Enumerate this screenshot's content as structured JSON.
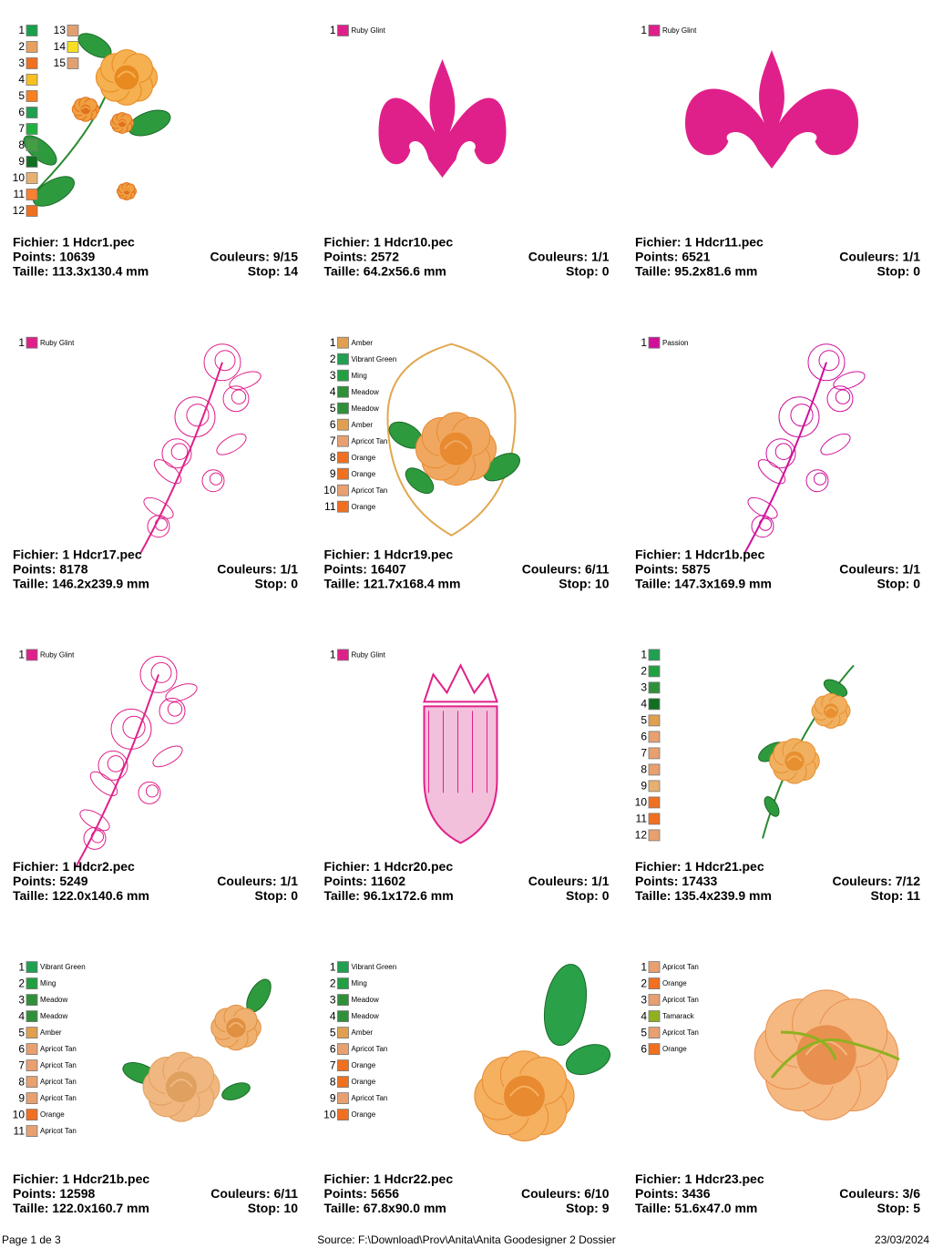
{
  "cards": [
    {
      "file": "Fichier: 1 Hdcr1.pec",
      "points": "Points: 10639",
      "colors_used": "Couleurs: 9/15",
      "size": "Taille: 113.3x130.4 mm",
      "stop": "Stop: 14",
      "items": [
        {
          "num": 1,
          "color": "#1aa04a"
        },
        {
          "num": 2,
          "color": "#e8a060"
        },
        {
          "num": 3,
          "color": "#f07020"
        },
        {
          "num": 4,
          "color": "#f8c020"
        },
        {
          "num": 5,
          "color": "#f88020"
        },
        {
          "num": 6,
          "color": "#20a050"
        },
        {
          "num": 7,
          "color": "#20b040"
        },
        {
          "num": 8,
          "color": "#40a040"
        },
        {
          "num": 9,
          "color": "#107020"
        },
        {
          "num": 10,
          "color": "#e8b070"
        },
        {
          "num": 11,
          "color": "#f88030"
        },
        {
          "num": 12,
          "color": "#f07020"
        },
        {
          "num": 13,
          "color": "#e0a070"
        },
        {
          "num": 14,
          "color": "#f8e020"
        },
        {
          "num": 15,
          "color": "#e0a070"
        }
      ]
    },
    {
      "file": "Fichier: 1 Hdcr10.pec",
      "points": "Points: 2572",
      "colors_used": "Couleurs: 1/1",
      "size": "Taille: 64.2x56.6 mm",
      "stop": "Stop: 0",
      "items": [
        {
          "num": 1,
          "color": "#e0208a",
          "name": "Ruby Glint"
        }
      ]
    },
    {
      "file": "Fichier: 1 Hdcr11.pec",
      "points": "Points: 6521",
      "colors_used": "Couleurs: 1/1",
      "size": "Taille: 95.2x81.6 mm",
      "stop": "Stop: 0",
      "items": [
        {
          "num": 1,
          "color": "#e0208a",
          "name": "Ruby Glint"
        }
      ]
    },
    {
      "file": "Fichier: 1 Hdcr17.pec",
      "points": "Points: 8178",
      "colors_used": "Couleurs: 1/1",
      "size": "Taille: 146.2x239.9 mm",
      "stop": "Stop: 0",
      "items": [
        {
          "num": 1,
          "color": "#e0208a",
          "name": "Ruby Glint"
        }
      ]
    },
    {
      "file": "Fichier: 1 Hdcr19.pec",
      "points": "Points: 16407",
      "colors_used": "Couleurs: 6/11",
      "size": "Taille: 121.7x168.4 mm",
      "stop": "Stop: 10",
      "items": [
        {
          "num": 1,
          "color": "#e0a050",
          "name": "Amber"
        },
        {
          "num": 2,
          "color": "#20a050",
          "name": "Vibrant Green"
        },
        {
          "num": 3,
          "color": "#20a040",
          "name": "Ming"
        },
        {
          "num": 4,
          "color": "#30903a",
          "name": "Meadow"
        },
        {
          "num": 5,
          "color": "#30903a",
          "name": "Meadow"
        },
        {
          "num": 6,
          "color": "#e0a050",
          "name": "Amber"
        },
        {
          "num": 7,
          "color": "#e8a070",
          "name": "Apricot Tan"
        },
        {
          "num": 8,
          "color": "#f07020",
          "name": "Orange"
        },
        {
          "num": 9,
          "color": "#f07020",
          "name": "Orange"
        },
        {
          "num": 10,
          "color": "#e8a070",
          "name": "Apricot Tan"
        },
        {
          "num": 11,
          "color": "#f07020",
          "name": "Orange"
        }
      ]
    },
    {
      "file": "Fichier: 1 Hdcr1b.pec",
      "points": "Points: 5875",
      "colors_used": "Couleurs: 1/1",
      "size": "Taille: 147.3x169.9 mm",
      "stop": "Stop: 0",
      "items": [
        {
          "num": 1,
          "color": "#d0109a",
          "name": "Passion"
        }
      ]
    },
    {
      "file": "Fichier: 1 Hdcr2.pec",
      "points": "Points: 5249",
      "colors_used": "Couleurs: 1/1",
      "size": "Taille: 122.0x140.6 mm",
      "stop": "Stop: 0",
      "items": [
        {
          "num": 1,
          "color": "#e0208a",
          "name": "Ruby Glint"
        }
      ]
    },
    {
      "file": "Fichier: 1 Hdcr20.pec",
      "points": "Points: 11602",
      "colors_used": "Couleurs: 1/1",
      "size": "Taille: 96.1x172.6 mm",
      "stop": "Stop: 0",
      "items": [
        {
          "num": 1,
          "color": "#e0208a",
          "name": "Ruby Glint"
        }
      ]
    },
    {
      "file": "Fichier: 1 Hdcr21.pec",
      "points": "Points: 17433",
      "colors_used": "Couleurs: 7/12",
      "size": "Taille: 135.4x239.9 mm",
      "stop": "Stop: 11",
      "items": [
        {
          "num": 1,
          "color": "#20a050"
        },
        {
          "num": 2,
          "color": "#20a040"
        },
        {
          "num": 3,
          "color": "#30903a"
        },
        {
          "num": 4,
          "color": "#107020"
        },
        {
          "num": 5,
          "color": "#e0a050"
        },
        {
          "num": 6,
          "color": "#e8a070"
        },
        {
          "num": 7,
          "color": "#e8a070"
        },
        {
          "num": 8,
          "color": "#e8a070"
        },
        {
          "num": 9,
          "color": "#e8b070"
        },
        {
          "num": 10,
          "color": "#f07020"
        },
        {
          "num": 11,
          "color": "#f07020"
        },
        {
          "num": 12,
          "color": "#e8a070"
        }
      ]
    },
    {
      "file": "Fichier: 1 Hdcr21b.pec",
      "points": "Points: 12598",
      "colors_used": "Couleurs: 6/11",
      "size": "Taille: 122.0x160.7 mm",
      "stop": "Stop: 10",
      "items": [
        {
          "num": 1,
          "color": "#20a050",
          "name": "Vibrant Green"
        },
        {
          "num": 2,
          "color": "#20a040",
          "name": "Ming"
        },
        {
          "num": 3,
          "color": "#30903a",
          "name": "Meadow"
        },
        {
          "num": 4,
          "color": "#30903a",
          "name": "Meadow"
        },
        {
          "num": 5,
          "color": "#e0a050",
          "name": "Amber"
        },
        {
          "num": 6,
          "color": "#e8a070",
          "name": "Apricot Tan"
        },
        {
          "num": 7,
          "color": "#e8a070",
          "name": "Apricot Tan"
        },
        {
          "num": 8,
          "color": "#e8a070",
          "name": "Apricot Tan"
        },
        {
          "num": 9,
          "color": "#e8a070",
          "name": "Apricot Tan"
        },
        {
          "num": 10,
          "color": "#f07020",
          "name": "Orange"
        },
        {
          "num": 11,
          "color": "#e8a070",
          "name": "Apricot Tan"
        }
      ]
    },
    {
      "file": "Fichier: 1 Hdcr22.pec",
      "points": "Points: 5656",
      "colors_used": "Couleurs: 6/10",
      "size": "Taille: 67.8x90.0 mm",
      "stop": "Stop: 9",
      "items": [
        {
          "num": 1,
          "color": "#20a050",
          "name": "Vibrant Green"
        },
        {
          "num": 2,
          "color": "#20a040",
          "name": "Ming"
        },
        {
          "num": 3,
          "color": "#30903a",
          "name": "Meadow"
        },
        {
          "num": 4,
          "color": "#30903a",
          "name": "Meadow"
        },
        {
          "num": 5,
          "color": "#e0a050",
          "name": "Amber"
        },
        {
          "num": 6,
          "color": "#e8a070",
          "name": "Apricot Tan"
        },
        {
          "num": 7,
          "color": "#f07020",
          "name": "Orange"
        },
        {
          "num": 8,
          "color": "#f07020",
          "name": "Orange"
        },
        {
          "num": 9,
          "color": "#e8a070",
          "name": "Apricot Tan"
        },
        {
          "num": 10,
          "color": "#f07020",
          "name": "Orange"
        }
      ]
    },
    {
      "file": "Fichier: 1 Hdcr23.pec",
      "points": "Points: 3436",
      "colors_used": "Couleurs: 3/6",
      "size": "Taille: 51.6x47.0 mm",
      "stop": "Stop: 5",
      "items": [
        {
          "num": 1,
          "color": "#e8a070",
          "name": "Apricot Tan"
        },
        {
          "num": 2,
          "color": "#f07020",
          "name": "Orange"
        },
        {
          "num": 3,
          "color": "#e8a070",
          "name": "Apricot Tan"
        },
        {
          "num": 4,
          "color": "#90b020",
          "name": "Tamarack"
        },
        {
          "num": 5,
          "color": "#e8a070",
          "name": "Apricot Tan"
        },
        {
          "num": 6,
          "color": "#f07020",
          "name": "Orange"
        }
      ]
    }
  ],
  "footer": {
    "page": "Page 1 de 3",
    "source": "Source: F:\\Download\\Prov\\Anita\\Anita Goodesigner 2 Dossier",
    "date": "23/03/2024"
  }
}
